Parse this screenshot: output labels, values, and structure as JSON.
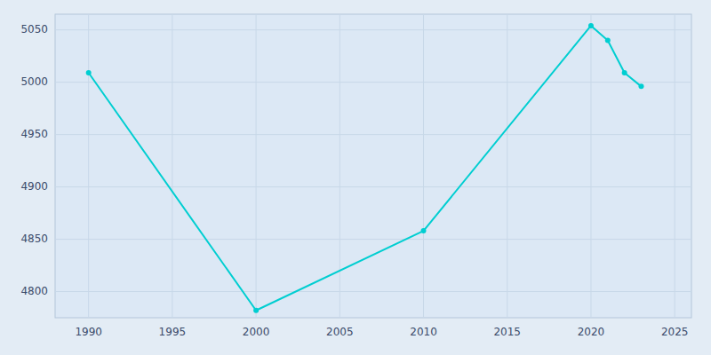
{
  "chart_data": {
    "type": "line",
    "x": [
      1990,
      2000,
      2010,
      2020,
      2021,
      2022,
      2023
    ],
    "values": [
      5009,
      4782,
      4858,
      5054,
      5040,
      5009,
      4996
    ],
    "color": "#00CED1",
    "marker": "circle",
    "xlim": [
      1988,
      2026
    ],
    "ylim": [
      4775,
      5065
    ],
    "xticks": [
      1990,
      1995,
      2000,
      2005,
      2010,
      2015,
      2020,
      2025
    ],
    "yticks": [
      4800,
      4850,
      4900,
      4950,
      5000,
      5050
    ],
    "grid": true
  }
}
